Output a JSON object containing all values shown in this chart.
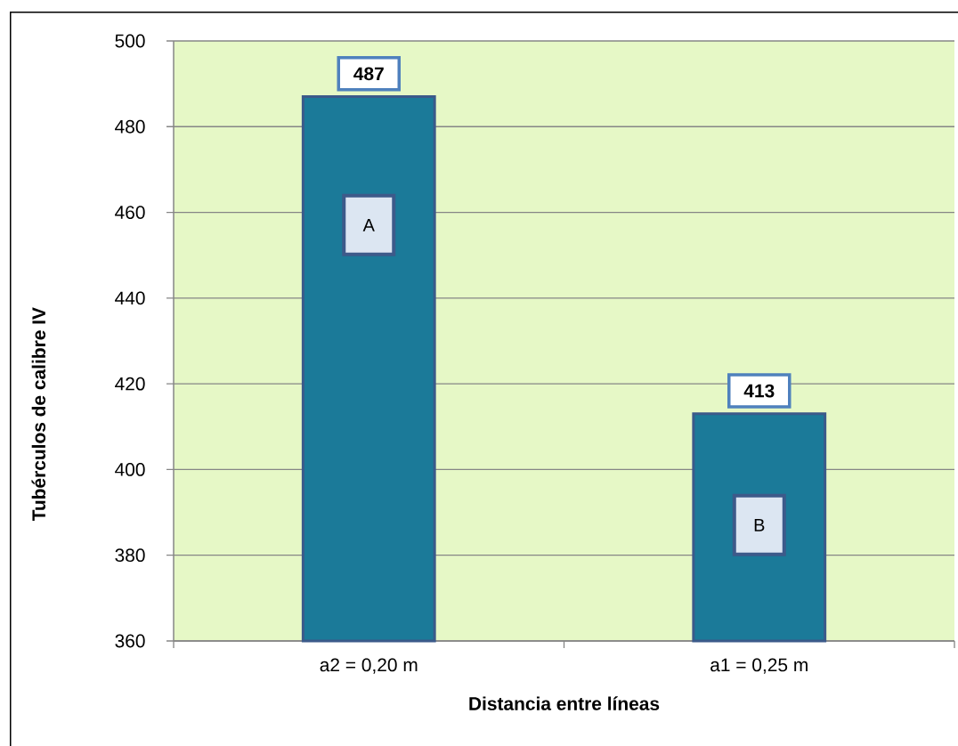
{
  "chart_data": {
    "type": "bar",
    "xlabel": "Distancia entre líneas",
    "ylabel": "Tubérculos de calibre IV",
    "categories": [
      "a2 =  0,20 m",
      "a1 =  0,25 m"
    ],
    "values": [
      487,
      413
    ],
    "color": "#1b7a99",
    "ylim": [
      360,
      500
    ],
    "yticks": [
      360,
      380,
      400,
      420,
      440,
      460,
      480,
      500
    ],
    "grid": "y",
    "data_labels": true,
    "annotations": [
      "A",
      "B"
    ]
  }
}
